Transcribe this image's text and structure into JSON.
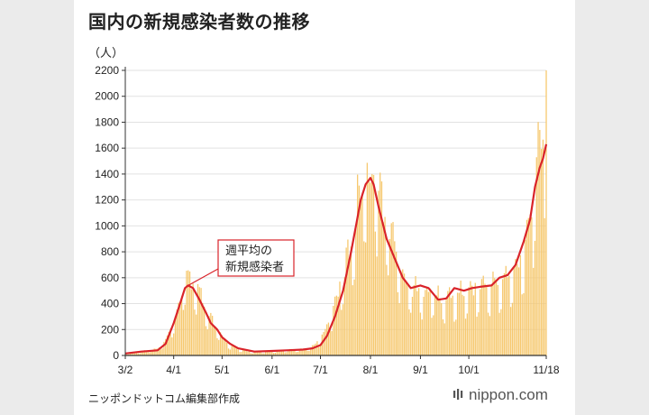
{
  "title": "国内の新規感染者数の推移",
  "credit": "ニッポンドットコム編集部作成",
  "brand": "nippon.com",
  "colors": {
    "bar": "#f6c86e",
    "line": "#d9232a",
    "axis": "#333333",
    "grid": "#e2e2e2"
  },
  "chart_data": {
    "type": "bar",
    "ylabel": "（人）",
    "ylim": [
      0,
      2200
    ],
    "yticks": [
      0,
      200,
      400,
      600,
      800,
      1000,
      1200,
      1400,
      1600,
      1800,
      2000,
      2200
    ],
    "xticks": [
      {
        "day": 0,
        "label": "3/2"
      },
      {
        "day": 30,
        "label": "4/1"
      },
      {
        "day": 60,
        "label": "5/1"
      },
      {
        "day": 91,
        "label": "6/1"
      },
      {
        "day": 121,
        "label": "7/1"
      },
      {
        "day": 152,
        "label": "8/1"
      },
      {
        "day": 183,
        "label": "9/1"
      },
      {
        "day": 213,
        "label": "10/1"
      },
      {
        "day": 261,
        "label": "11/18"
      }
    ],
    "annotation": {
      "line1": "週平均の",
      "line2": "新規感染者"
    },
    "series": [
      {
        "kind": "daily",
        "anchors": [
          [
            0,
            10
          ],
          [
            10,
            30
          ],
          [
            20,
            50
          ],
          [
            25,
            110
          ],
          [
            30,
            250
          ],
          [
            35,
            450
          ],
          [
            38,
            650
          ],
          [
            41,
            560
          ],
          [
            45,
            520
          ],
          [
            50,
            380
          ],
          [
            55,
            240
          ],
          [
            60,
            150
          ],
          [
            65,
            80
          ],
          [
            70,
            45
          ],
          [
            80,
            25
          ],
          [
            91,
            30
          ],
          [
            100,
            40
          ],
          [
            110,
            45
          ],
          [
            115,
            60
          ],
          [
            121,
            120
          ],
          [
            125,
            230
          ],
          [
            130,
            400
          ],
          [
            135,
            600
          ],
          [
            140,
            850
          ],
          [
            144,
            1150
          ],
          [
            148,
            1450
          ],
          [
            152,
            1300
          ],
          [
            155,
            1430
          ],
          [
            158,
            1200
          ],
          [
            163,
            1000
          ],
          [
            168,
            800
          ],
          [
            173,
            600
          ],
          [
            178,
            500
          ],
          [
            183,
            500
          ],
          [
            190,
            480
          ],
          [
            196,
            420
          ],
          [
            203,
            450
          ],
          [
            210,
            480
          ],
          [
            217,
            520
          ],
          [
            224,
            530
          ],
          [
            231,
            550
          ],
          [
            238,
            600
          ],
          [
            244,
            700
          ],
          [
            248,
            900
          ],
          [
            252,
            1100
          ],
          [
            256,
            1500
          ],
          [
            258,
            1700
          ],
          [
            260,
            1750
          ],
          [
            261,
            2200
          ]
        ]
      },
      {
        "kind": "weekly-average",
        "points": [
          [
            0,
            15
          ],
          [
            10,
            30
          ],
          [
            20,
            40
          ],
          [
            25,
            90
          ],
          [
            30,
            250
          ],
          [
            34,
            400
          ],
          [
            37,
            520
          ],
          [
            39,
            540
          ],
          [
            42,
            520
          ],
          [
            46,
            430
          ],
          [
            50,
            330
          ],
          [
            53,
            250
          ],
          [
            57,
            200
          ],
          [
            60,
            140
          ],
          [
            65,
            90
          ],
          [
            70,
            55
          ],
          [
            80,
            30
          ],
          [
            91,
            35
          ],
          [
            100,
            40
          ],
          [
            110,
            45
          ],
          [
            116,
            55
          ],
          [
            121,
            80
          ],
          [
            125,
            150
          ],
          [
            130,
            300
          ],
          [
            135,
            500
          ],
          [
            140,
            800
          ],
          [
            143,
            1000
          ],
          [
            146,
            1200
          ],
          [
            149,
            1320
          ],
          [
            152,
            1370
          ],
          [
            154,
            1320
          ],
          [
            157,
            1150
          ],
          [
            162,
            900
          ],
          [
            167,
            750
          ],
          [
            172,
            600
          ],
          [
            177,
            520
          ],
          [
            183,
            540
          ],
          [
            188,
            520
          ],
          [
            194,
            430
          ],
          [
            199,
            440
          ],
          [
            204,
            520
          ],
          [
            210,
            500
          ],
          [
            215,
            520
          ],
          [
            220,
            530
          ],
          [
            227,
            540
          ],
          [
            232,
            600
          ],
          [
            237,
            620
          ],
          [
            242,
            700
          ],
          [
            247,
            880
          ],
          [
            251,
            1050
          ],
          [
            254,
            1300
          ],
          [
            257,
            1450
          ],
          [
            259,
            1520
          ],
          [
            261,
            1630
          ]
        ]
      }
    ]
  }
}
